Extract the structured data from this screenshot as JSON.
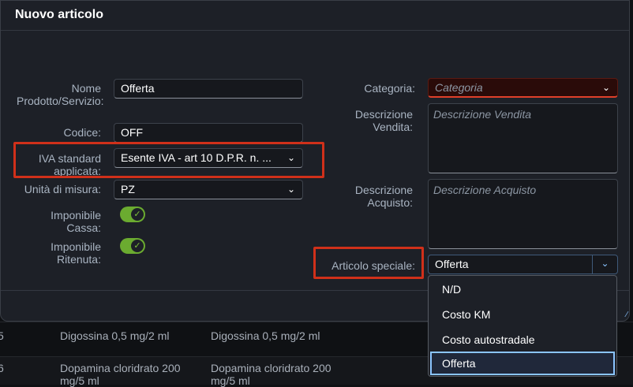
{
  "dialog": {
    "title": "Nuovo articolo"
  },
  "form": {
    "nome_label": "Nome Prodotto/Servizio:",
    "nome_value": "Offerta",
    "codice_label": "Codice:",
    "codice_value": "OFF",
    "iva_label": "IVA standard applicata:",
    "iva_value": "Esente IVA - art 10 D.P.R. n. ...",
    "unita_label": "Unità di misura:",
    "unita_value": "PZ",
    "cassa_label": "Imponibile Cassa:",
    "cassa_on": true,
    "ritenuta_label": "Imponibile Ritenuta:",
    "ritenuta_on": true,
    "categoria_label": "Categoria:",
    "categoria_placeholder": "Categoria",
    "vendita_label": "Descrizione Vendita:",
    "vendita_placeholder": "Descrizione Vendita",
    "acquisto_label": "Descrizione Acquisto:",
    "acquisto_placeholder": "Descrizione Acquisto",
    "speciale_label": "Articolo speciale:",
    "speciale_value": "Offerta",
    "speciale_options": [
      "N/D",
      "Costo KM",
      "Costo autostradale",
      "Offerta"
    ]
  },
  "background_table": {
    "rows": [
      {
        "id": "5",
        "col1": "Digossina 0,5 mg/2 ml",
        "col2": "Digossina 0,5 mg/2 ml"
      },
      {
        "id": "6",
        "col1": "Dopamina cloridrato 200 mg/5 ml",
        "col2": "Dopamina cloridrato 200 mg/5 ml"
      }
    ]
  },
  "colors": {
    "accent": "#8ac4ff",
    "toggle": "#6bab30",
    "error": "#e0402a",
    "highlight": "#d0301a"
  }
}
